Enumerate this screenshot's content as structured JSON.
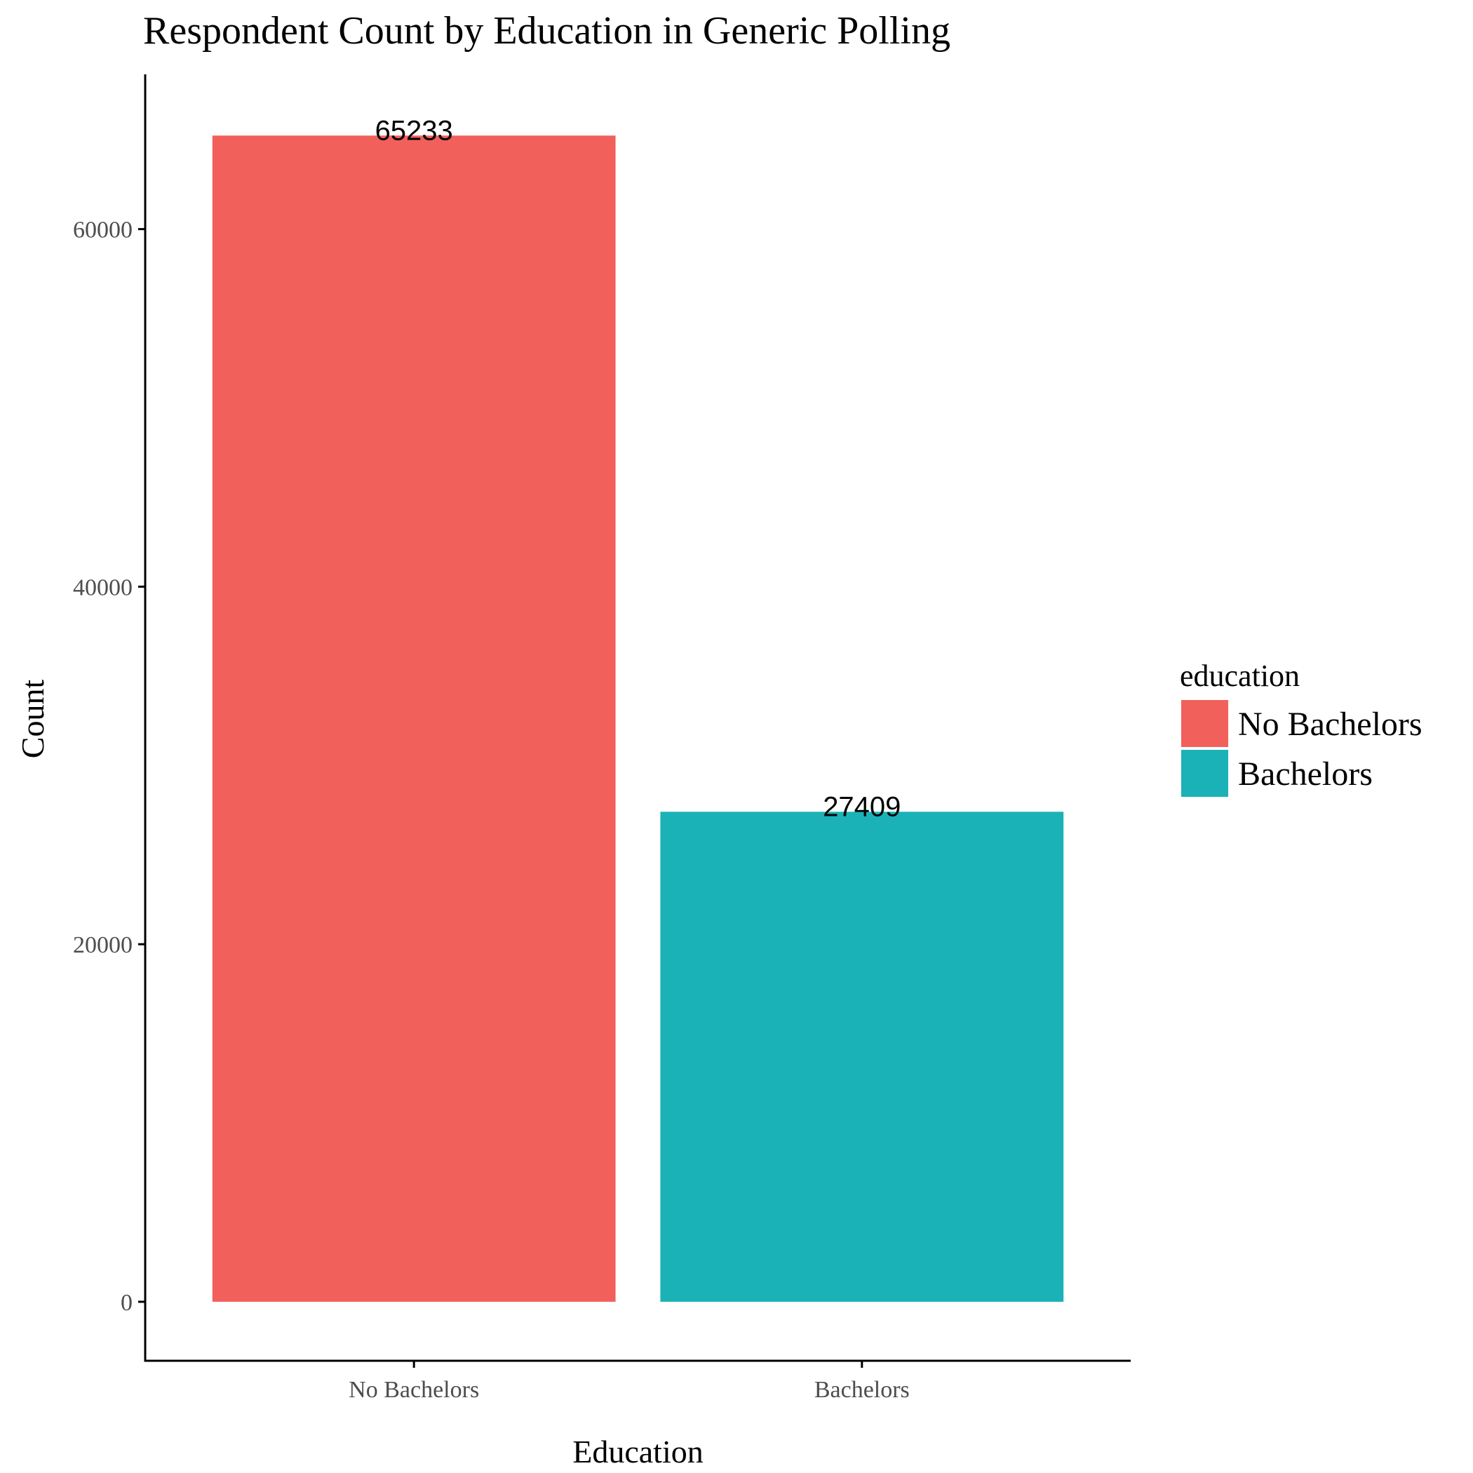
{
  "chart_data": {
    "type": "bar",
    "title": "Respondent Count by Education in Generic Polling",
    "xlabel": "Education",
    "ylabel": "Count",
    "categories": [
      "No Bachelors",
      "Bachelors"
    ],
    "values": [
      65233,
      27409
    ],
    "data_labels": [
      "65233",
      "27409"
    ],
    "colors": [
      "#F2605B",
      "#1AB2B7"
    ],
    "yticks": [
      0,
      20000,
      40000,
      60000
    ],
    "ytick_labels": [
      "0",
      "20000",
      "40000",
      "60000"
    ],
    "ylim": [
      -3300,
      68500
    ],
    "grid": false,
    "legend": {
      "title": "education",
      "position": "right",
      "entries": [
        "No Bachelors",
        "Bachelors"
      ]
    }
  }
}
